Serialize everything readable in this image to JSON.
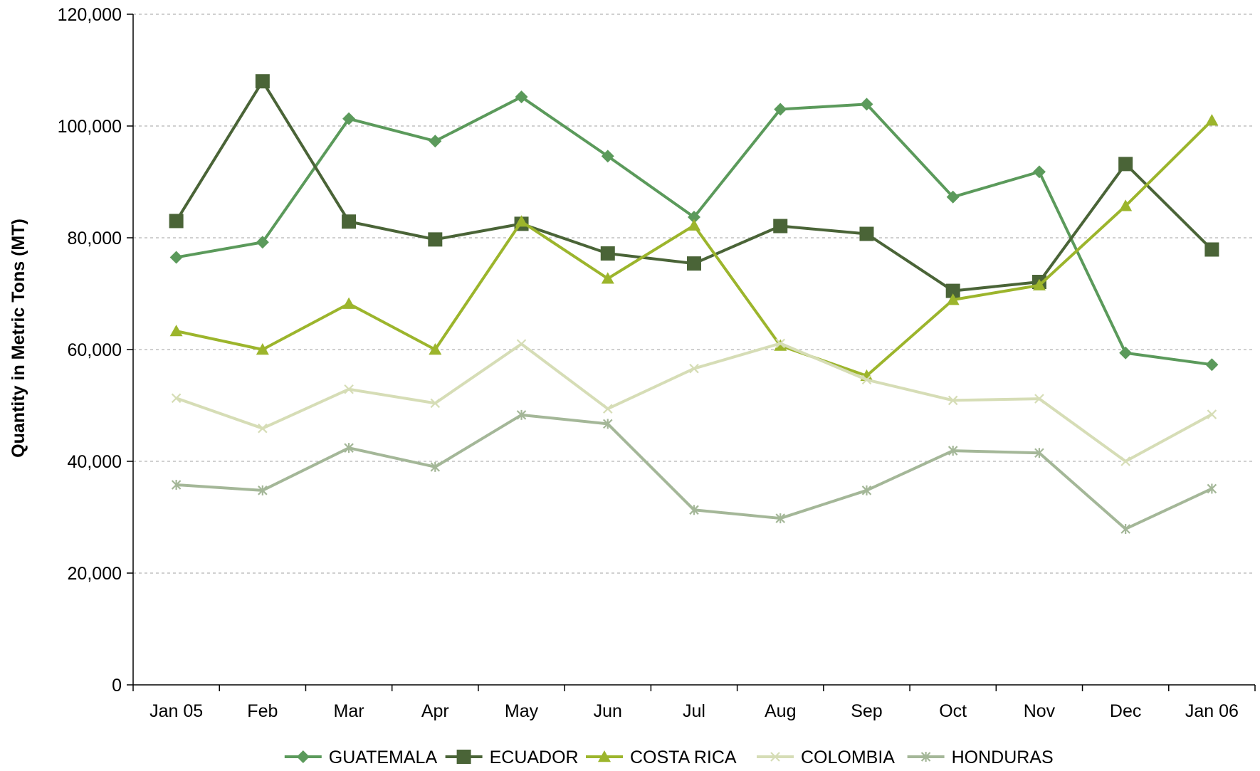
{
  "chart_data": {
    "type": "line",
    "title": "",
    "xlabel": "",
    "ylabel": "Quantity in Metric Tons (MT)",
    "categories": [
      "Jan 05",
      "Feb",
      "Mar",
      "Apr",
      "May",
      "Jun",
      "Jul",
      "Aug",
      "Sep",
      "Oct",
      "Nov",
      "Dec",
      "Jan 06"
    ],
    "ylim": [
      0,
      120000
    ],
    "yticks": [
      0,
      20000,
      40000,
      60000,
      80000,
      100000,
      120000
    ],
    "ytick_labels": [
      "0",
      "20,000",
      "40,000",
      "60,000",
      "80,000",
      "100,000",
      "120,000"
    ],
    "grid": "horizontal dashed",
    "legend_position": "bottom",
    "series": [
      {
        "name": "GUATEMALA",
        "color": "#5B9A5B",
        "marker": "diamond",
        "values": [
          76500,
          79200,
          101300,
          97300,
          105200,
          94600,
          83700,
          103000,
          103900,
          87300,
          91800,
          59400,
          57300
        ]
      },
      {
        "name": "ECUADOR",
        "color": "#4A6437",
        "marker": "square",
        "values": [
          83000,
          108000,
          82900,
          79700,
          82500,
          77200,
          75400,
          82100,
          80700,
          70500,
          72100,
          93200,
          77900
        ]
      },
      {
        "name": "COSTA RICA",
        "color": "#9CB52C",
        "marker": "triangle",
        "values": [
          63300,
          60000,
          68200,
          60000,
          82900,
          72700,
          82200,
          60700,
          55300,
          68900,
          71500,
          85700,
          101000
        ]
      },
      {
        "name": "COLOMBIA",
        "color": "#D6DDB6",
        "marker": "x",
        "values": [
          51300,
          45900,
          52900,
          50400,
          61000,
          49400,
          56600,
          61100,
          54600,
          50900,
          51200,
          40000,
          48400
        ]
      },
      {
        "name": "HONDURAS",
        "color": "#A4B798",
        "marker": "star",
        "values": [
          35800,
          34800,
          42400,
          39000,
          48300,
          46700,
          31300,
          29800,
          34800,
          41900,
          41500,
          27900,
          35100
        ]
      }
    ]
  }
}
